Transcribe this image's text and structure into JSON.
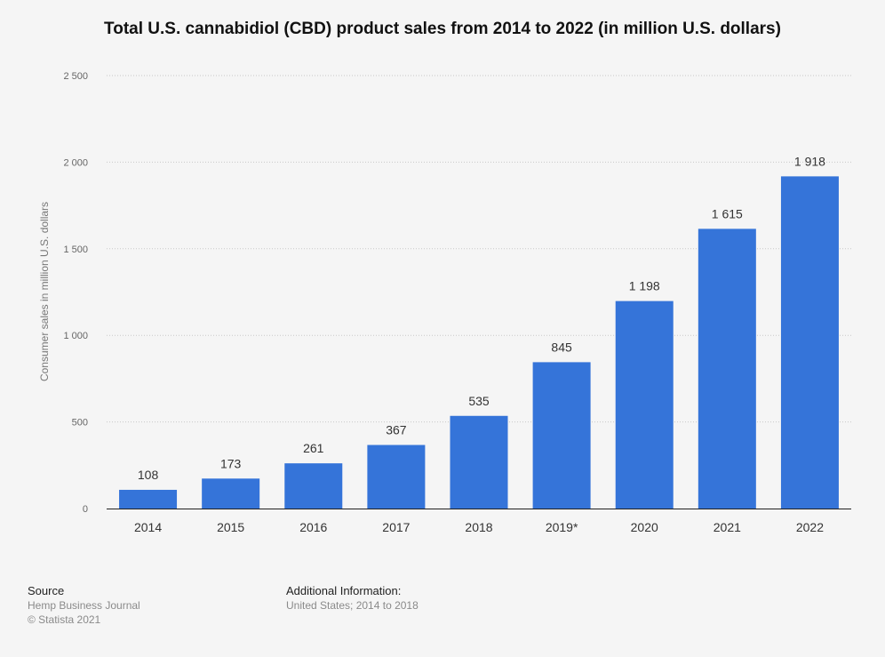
{
  "chart_data": {
    "type": "bar",
    "title": "Total U.S. cannabidiol (CBD) product sales from 2014 to 2022 (in million U.S. dollars)",
    "xlabel": "",
    "ylabel": "Consumer sales in million U.S. dollars",
    "categories": [
      "2014",
      "2015",
      "2016",
      "2017",
      "2018",
      "2019*",
      "2020",
      "2021",
      "2022"
    ],
    "values": [
      108,
      173,
      261,
      367,
      535,
      845,
      1198,
      1615,
      1918
    ],
    "value_labels": [
      "108",
      "173",
      "261",
      "367",
      "535",
      "845",
      "1 198",
      "1 615",
      "1 918"
    ],
    "ylim": [
      0,
      2500
    ],
    "yticks": [
      0,
      500,
      1000,
      1500,
      2000,
      2500
    ],
    "ytick_labels": [
      "0",
      "500",
      "1 000",
      "1 500",
      "2 000",
      "2 500"
    ],
    "grid": true,
    "bar_color": "#3574d9"
  },
  "footer": {
    "source_heading": "Source",
    "source_lines": [
      "Hemp Business Journal",
      "© Statista 2021"
    ],
    "info_heading": "Additional Information:",
    "info_text": "United States; 2014 to 2018"
  }
}
